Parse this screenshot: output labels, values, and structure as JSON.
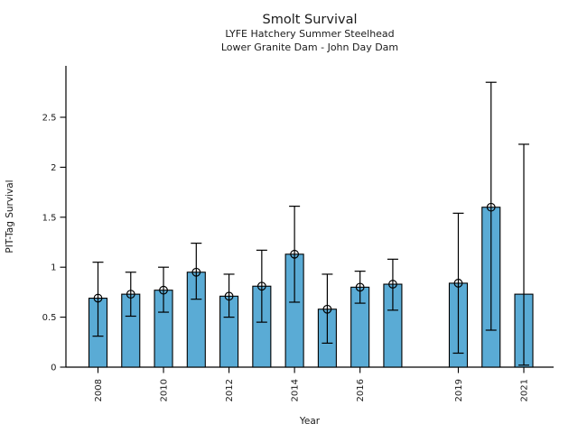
{
  "chart_data": {
    "type": "bar",
    "title": "Smolt Survival",
    "subtitle1": "LYFE Hatchery Summer Steelhead",
    "subtitle2": "Lower Granite Dam - John Day Dam",
    "xlabel": "Year",
    "ylabel": "PIT-Tag Survival",
    "ylim": [
      0,
      3.0
    ],
    "yticks": [
      0,
      0.5,
      1,
      1.5,
      2,
      2.5
    ],
    "ytick_labels": [
      "0",
      "0.5",
      "1",
      "1.5",
      "2",
      "2.5"
    ],
    "xtick_years": [
      2008,
      2010,
      2012,
      2014,
      2016,
      2019,
      2021
    ],
    "xtick_labels": [
      "2008",
      "2010",
      "2012",
      "2014",
      "2016",
      "2019",
      "2021"
    ],
    "grid": false,
    "legend": null,
    "bar_color": "#5AABD5",
    "edge_color": "#000000",
    "error_color": "#000000",
    "marker_style": "open-circle",
    "x_axis_note": "numeric year axis, no bar for 2018",
    "points": [
      {
        "year": 2008,
        "value": 0.69,
        "ci_low": 0.31,
        "ci_high": 1.05,
        "marker": true
      },
      {
        "year": 2009,
        "value": 0.73,
        "ci_low": 0.51,
        "ci_high": 0.95,
        "marker": true
      },
      {
        "year": 2010,
        "value": 0.77,
        "ci_low": 0.55,
        "ci_high": 1.0,
        "marker": true
      },
      {
        "year": 2011,
        "value": 0.95,
        "ci_low": 0.68,
        "ci_high": 1.24,
        "marker": true
      },
      {
        "year": 2012,
        "value": 0.71,
        "ci_low": 0.5,
        "ci_high": 0.93,
        "marker": true
      },
      {
        "year": 2013,
        "value": 0.81,
        "ci_low": 0.45,
        "ci_high": 1.17,
        "marker": true
      },
      {
        "year": 2014,
        "value": 1.13,
        "ci_low": 0.65,
        "ci_high": 1.61,
        "marker": true
      },
      {
        "year": 2015,
        "value": 0.58,
        "ci_low": 0.24,
        "ci_high": 0.93,
        "marker": true
      },
      {
        "year": 2016,
        "value": 0.8,
        "ci_low": 0.64,
        "ci_high": 0.96,
        "marker": true
      },
      {
        "year": 2017,
        "value": 0.83,
        "ci_low": 0.57,
        "ci_high": 1.08,
        "marker": true
      },
      {
        "year": 2019,
        "value": 0.84,
        "ci_low": 0.14,
        "ci_high": 1.54,
        "marker": true
      },
      {
        "year": 2020,
        "value": 1.6,
        "ci_low": 0.37,
        "ci_high": 2.85,
        "marker": true
      },
      {
        "year": 2021,
        "value": 0.73,
        "ci_low": 0.02,
        "ci_high": 2.23,
        "marker": false
      }
    ]
  }
}
